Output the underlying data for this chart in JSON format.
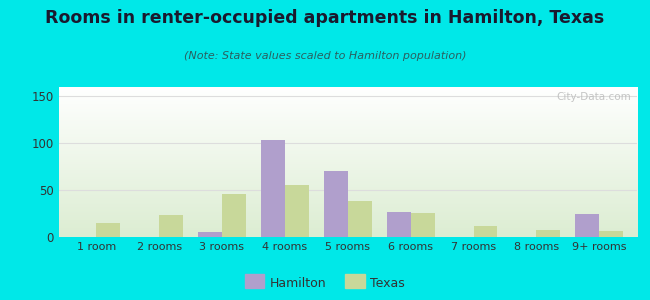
{
  "title": "Rooms in renter-occupied apartments in Hamilton, Texas",
  "subtitle": "(Note: State values scaled to Hamilton population)",
  "categories": [
    "1 room",
    "2 rooms",
    "3 rooms",
    "4 rooms",
    "5 rooms",
    "6 rooms",
    "7 rooms",
    "8 rooms",
    "9+ rooms"
  ],
  "hamilton_values": [
    0,
    0,
    5,
    103,
    70,
    27,
    0,
    0,
    25
  ],
  "texas_values": [
    15,
    24,
    46,
    55,
    38,
    26,
    12,
    7,
    6
  ],
  "hamilton_color": "#b09fcc",
  "texas_color": "#c8d89a",
  "background_outer": "#00e8e8",
  "ylim": [
    0,
    160
  ],
  "yticks": [
    0,
    50,
    100,
    150
  ],
  "bar_width": 0.38,
  "legend_hamilton": "Hamilton",
  "legend_texas": "Texas",
  "watermark": "City-Data.com",
  "title_color": "#1a1a2e",
  "subtitle_color": "#2a6060",
  "tick_color": "#333333",
  "grid_color": "#dddddd"
}
